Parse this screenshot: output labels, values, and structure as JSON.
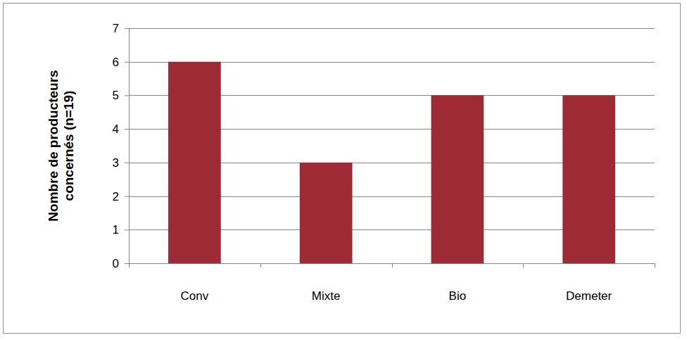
{
  "chart_data": {
    "type": "bar",
    "y_label": "Nombre de producteurs concernés (n=19)",
    "categories": [
      "Conv",
      "Mixte",
      "Bio",
      "Demeter"
    ],
    "values": [
      6,
      3,
      5,
      5
    ],
    "color": "#9e2a36",
    "ylim": [
      0,
      7
    ],
    "yticks": [
      0,
      1,
      2,
      3,
      4,
      5,
      6,
      7
    ],
    "grid": true
  }
}
